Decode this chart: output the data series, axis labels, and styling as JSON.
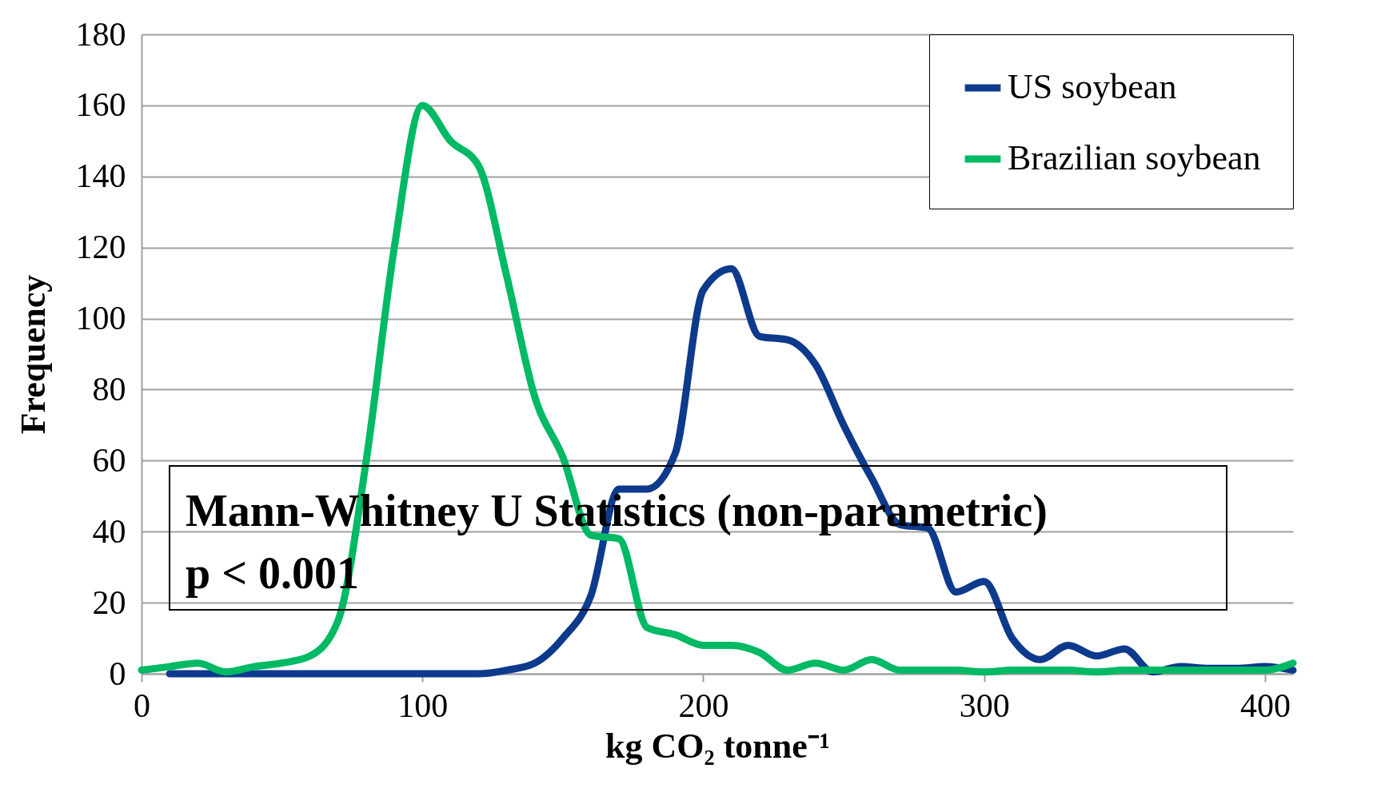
{
  "chart_data": {
    "type": "line",
    "xlabel": "kg CO₂ tonne⁻¹",
    "ylabel": "Frequency",
    "xlim": [
      0,
      410
    ],
    "xticks": [
      0,
      100,
      200,
      300,
      400
    ],
    "ylim": [
      0,
      180
    ],
    "yticks": [
      0,
      20,
      40,
      60,
      80,
      100,
      120,
      140,
      160,
      180
    ],
    "grid": "y",
    "legend": "top right",
    "line_style": "solid",
    "marker": "none",
    "annotations": [
      "Mann-Whitney U Statistics (non-parametric)",
      "p < 0.001"
    ],
    "series": [
      {
        "name": "US soybean",
        "color": "#0d3a8c",
        "x": [
          10,
          20,
          30,
          40,
          50,
          60,
          70,
          80,
          90,
          100,
          110,
          120,
          130,
          140,
          150,
          160,
          170,
          180,
          190,
          200,
          210,
          220,
          230,
          240,
          250,
          260,
          270,
          280,
          290,
          300,
          310,
          320,
          330,
          340,
          350,
          360,
          370,
          380,
          390,
          400,
          410
        ],
        "values": [
          0,
          0,
          0,
          0,
          0,
          0,
          0,
          0,
          0,
          0,
          0,
          0,
          1,
          3,
          10,
          22,
          52,
          52,
          62,
          108,
          114,
          95,
          94,
          87,
          70,
          55,
          42,
          41,
          23,
          26,
          10,
          4,
          8,
          5,
          7,
          0.5,
          2,
          1.5,
          1.5,
          2,
          1
        ]
      },
      {
        "name": "Brazilian soybean",
        "color": "#00b964",
        "x": [
          0,
          10,
          20,
          30,
          40,
          50,
          60,
          70,
          80,
          90,
          100,
          110,
          120,
          130,
          140,
          150,
          160,
          170,
          180,
          190,
          200,
          210,
          220,
          230,
          240,
          250,
          260,
          270,
          280,
          290,
          300,
          310,
          320,
          330,
          340,
          350,
          360,
          370,
          380,
          390,
          400,
          410
        ],
        "values": [
          1,
          2,
          3,
          0.5,
          2,
          3,
          5,
          15,
          60,
          120,
          160,
          150,
          143,
          112,
          78,
          61,
          39,
          38,
          13,
          11,
          8,
          8,
          6,
          1,
          3,
          1,
          4,
          1,
          1,
          1,
          0.5,
          1,
          1,
          1,
          0.5,
          1,
          1,
          1,
          1,
          1,
          1,
          3
        ]
      }
    ]
  }
}
